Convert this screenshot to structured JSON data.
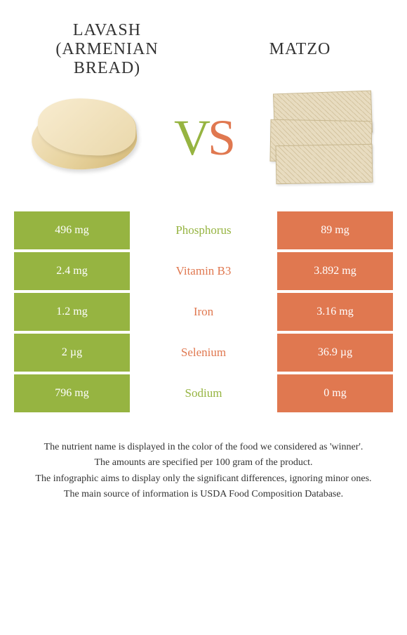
{
  "foods": {
    "left": {
      "title": "LAVASH (ARMENIAN BREAD)"
    },
    "right": {
      "title": "MATZO"
    }
  },
  "vs": {
    "v": "V",
    "s": "S"
  },
  "colors": {
    "left_bg": "#96b441",
    "right_bg": "#e07850",
    "mid_text_left": "#e07850",
    "mid_text_right": "#96b441"
  },
  "nutrients": [
    {
      "name": "Phosphorus",
      "left": "496 mg",
      "right": "89 mg",
      "winner": "left"
    },
    {
      "name": "Vitamin B3",
      "left": "2.4 mg",
      "right": "3.892 mg",
      "winner": "right"
    },
    {
      "name": "Iron",
      "left": "1.2 mg",
      "right": "3.16 mg",
      "winner": "right"
    },
    {
      "name": "Selenium",
      "left": "2 µg",
      "right": "36.9 µg",
      "winner": "right"
    },
    {
      "name": "Sodium",
      "left": "796 mg",
      "right": "0 mg",
      "winner": "left"
    }
  ],
  "footnotes": [
    "The nutrient name is displayed in the color of the food we considered as 'winner'.",
    "The amounts are specified per 100 gram of the product.",
    "The infographic aims to display only the significant differences, ignoring minor ones.",
    "The main source of information is USDA Food Composition Database."
  ]
}
